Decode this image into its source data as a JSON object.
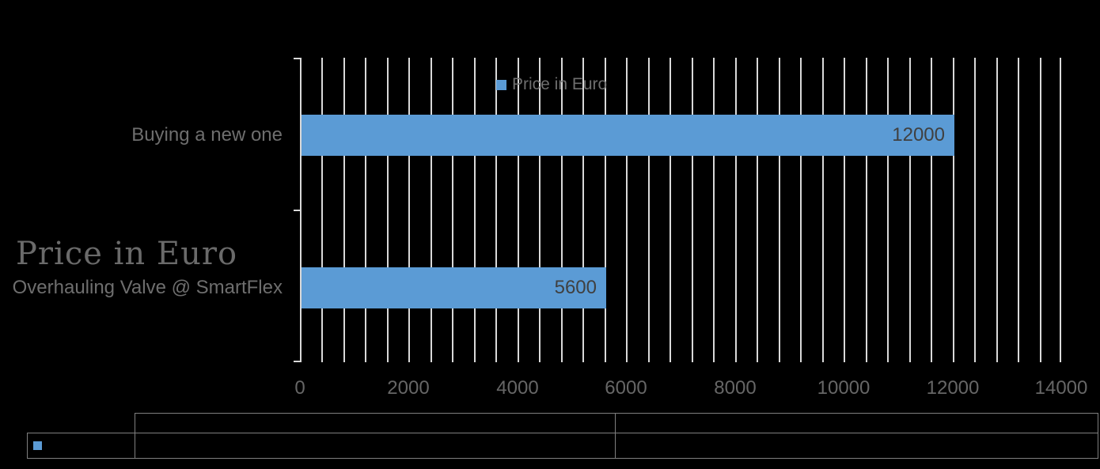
{
  "title": {
    "text": "Price in Euro"
  },
  "legend": {
    "label": "Price in Euro",
    "swatch_color": "#5B9BD5",
    "position": "top"
  },
  "chart_data": {
    "type": "bar",
    "orientation": "horizontal",
    "title": "Price in Euro",
    "categories": [
      "Buying a new one",
      "Overhauling Valve @ SmartFlex"
    ],
    "series": [
      {
        "name": "Price in Euro",
        "color": "#5B9BD5",
        "values": [
          12000,
          5600
        ]
      }
    ],
    "value_labels": [
      "12000",
      "5600"
    ],
    "data_label_position": "inside-end",
    "xlabel": "",
    "ylabel": "",
    "xlim": [
      0,
      14000
    ],
    "x_major_unit": 2000,
    "x_minor_unit": 400,
    "x_ticks": [
      "0",
      "2000",
      "4000",
      "6000",
      "8000",
      "10000",
      "12000",
      "14000"
    ],
    "gridlines": "vertical-minor",
    "legend_position": "top"
  },
  "colors": {
    "background": "#000000",
    "bar": "#5B9BD5",
    "gridline": "#D9D9D9",
    "axis_line": "#D9D9D9",
    "value_label": "#404040",
    "category_label": "#6E6E6E",
    "axis_tick_label": "#666666",
    "title": "#6A6A6A",
    "table_border": "#7F7F7F"
  },
  "table": {
    "legend_key_color": "#5B9BD5"
  }
}
